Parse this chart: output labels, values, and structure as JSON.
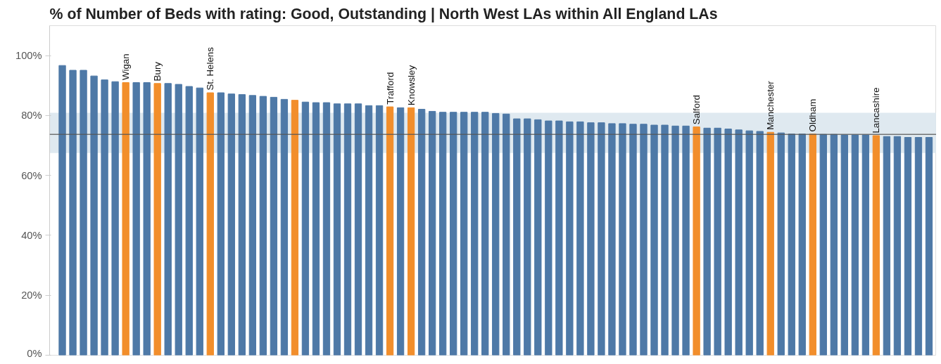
{
  "chart_data": {
    "type": "bar",
    "title": "% of Number of Beds with rating: Good, Outstanding | North West LAs within All England LAs",
    "categories": [
      null,
      null,
      null,
      null,
      null,
      null,
      "Wigan",
      null,
      null,
      "Bury",
      null,
      null,
      null,
      null,
      "St. Helens",
      null,
      null,
      null,
      null,
      null,
      null,
      null,
      null,
      null,
      null,
      null,
      null,
      null,
      null,
      null,
      null,
      "Trafford",
      null,
      "Knowsley",
      null,
      null,
      null,
      null,
      null,
      null,
      null,
      null,
      null,
      null,
      null,
      null,
      null,
      null,
      null,
      null,
      null,
      null,
      null,
      null,
      null,
      null,
      null,
      null,
      null,
      null,
      "Salford",
      null,
      null,
      null,
      null,
      null,
      null,
      "Manchester",
      null,
      null,
      null,
      "Oldham",
      null,
      null,
      null,
      null,
      null,
      "Lancashire",
      null,
      null,
      null,
      null,
      null
    ],
    "values": [
      96.7,
      95.1,
      95.1,
      93.2,
      91.9,
      91.3,
      91.0,
      91.0,
      91.0,
      90.7,
      90.7,
      90.4,
      89.7,
      89.2,
      87.6,
      87.6,
      87.2,
      87.0,
      86.7,
      86.4,
      86.1,
      85.4,
      85.1,
      84.5,
      84.3,
      84.3,
      83.9,
      83.9,
      83.9,
      83.3,
      83.3,
      82.9,
      82.6,
      82.6,
      82.1,
      81.4,
      81.1,
      81.1,
      81.1,
      81.1,
      81.1,
      80.7,
      80.5,
      78.9,
      78.9,
      78.6,
      78.2,
      78.2,
      77.9,
      77.9,
      77.6,
      77.6,
      77.3,
      77.3,
      77.1,
      77.1,
      76.8,
      76.8,
      76.5,
      76.5,
      76.2,
      75.8,
      75.8,
      75.5,
      75.2,
      74.9,
      74.7,
      74.4,
      74.2,
      73.8,
      73.8,
      73.8,
      73.7,
      73.7,
      73.5,
      73.5,
      73.5,
      73.3,
      73.0,
      73.0,
      72.7,
      72.7,
      72.7
    ],
    "colors": [
      "#4e79a7",
      "#4e79a7",
      "#4e79a7",
      "#4e79a7",
      "#4e79a7",
      "#4e79a7",
      "#f28e2b",
      "#4e79a7",
      "#4e79a7",
      "#f28e2b",
      "#4e79a7",
      "#4e79a7",
      "#4e79a7",
      "#4e79a7",
      "#f28e2b",
      "#4e79a7",
      "#4e79a7",
      "#4e79a7",
      "#4e79a7",
      "#4e79a7",
      "#4e79a7",
      "#4e79a7",
      "#f28e2b",
      "#4e79a7",
      "#4e79a7",
      "#4e79a7",
      "#4e79a7",
      "#4e79a7",
      "#4e79a7",
      "#4e79a7",
      "#4e79a7",
      "#f28e2b",
      "#4e79a7",
      "#f28e2b",
      "#4e79a7",
      "#4e79a7",
      "#4e79a7",
      "#4e79a7",
      "#4e79a7",
      "#4e79a7",
      "#4e79a7",
      "#4e79a7",
      "#4e79a7",
      "#4e79a7",
      "#4e79a7",
      "#4e79a7",
      "#4e79a7",
      "#4e79a7",
      "#4e79a7",
      "#4e79a7",
      "#4e79a7",
      "#4e79a7",
      "#4e79a7",
      "#4e79a7",
      "#4e79a7",
      "#4e79a7",
      "#4e79a7",
      "#4e79a7",
      "#4e79a7",
      "#4e79a7",
      "#f28e2b",
      "#4e79a7",
      "#4e79a7",
      "#4e79a7",
      "#4e79a7",
      "#4e79a7",
      "#4e79a7",
      "#f28e2b",
      "#4e79a7",
      "#4e79a7",
      "#4e79a7",
      "#f28e2b",
      "#4e79a7",
      "#4e79a7",
      "#4e79a7",
      "#4e79a7",
      "#4e79a7",
      "#f28e2b",
      "#4e79a7",
      "#4e79a7",
      "#4e79a7",
      "#4e79a7",
      "#4e79a7"
    ],
    "ylim": [
      0,
      110
    ],
    "yticks": [
      {
        "value": 0,
        "label": "0%"
      },
      {
        "value": 20,
        "label": "20%"
      },
      {
        "value": 40,
        "label": "40%"
      },
      {
        "value": 60,
        "label": "60%"
      },
      {
        "value": 80,
        "label": "80%"
      },
      {
        "value": 100,
        "label": "100%"
      }
    ],
    "ref_lines": [
      {
        "axis": "y",
        "value": 73.7,
        "color": "#555555"
      }
    ],
    "bands": [
      {
        "axis": "y",
        "from": 67.5,
        "to": 80.9,
        "color": "#dbe7ee"
      }
    ],
    "grid": false,
    "tick_labels": "y"
  }
}
